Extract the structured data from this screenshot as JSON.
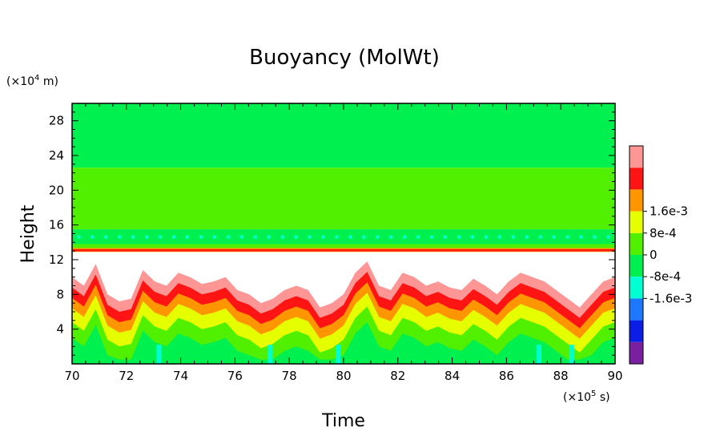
{
  "chart_data": {
    "type": "heatmap",
    "title": "Buoyancy (MolWt)",
    "xlabel": "Time",
    "ylabel": "Height",
    "x_multiplier": {
      "base": "(×10",
      "exp": "5",
      "unit": " s)"
    },
    "y_multiplier": {
      "base": "(×10",
      "exp": "4",
      "unit": " m)"
    },
    "xlim": [
      70,
      90
    ],
    "ylim": [
      0,
      30
    ],
    "x_ticks": [
      "70",
      "72",
      "74",
      "76",
      "78",
      "80",
      "82",
      "84",
      "86",
      "88",
      "90"
    ],
    "x_tick_values": [
      70,
      72,
      74,
      76,
      78,
      80,
      82,
      84,
      86,
      88,
      90
    ],
    "y_ticks": [
      "4",
      "8",
      "12",
      "16",
      "20",
      "24",
      "28"
    ],
    "y_tick_values": [
      4,
      8,
      12,
      16,
      20,
      24,
      28
    ],
    "colorbar": {
      "levels": [
        -0.0024,
        -0.0016,
        -0.0008,
        0,
        0.0008,
        0.0016,
        0.0024
      ],
      "colors": [
        "#7a1fa0",
        "#0a1ee6",
        "#1e78ff",
        "#00ffd2",
        "#00f050",
        "#50f000",
        "#e6ff00",
        "#ff9600",
        "#ff1414",
        "#ff9696"
      ],
      "tick_labels": [
        "1.6e-3",
        "8e-4",
        "0",
        "-8e-4",
        "-1.6e-3"
      ],
      "tick_values": [
        0.0016,
        0.0008,
        0,
        -0.0008,
        -0.0016
      ]
    },
    "bands": [
      {
        "from": 22.6,
        "to": 30,
        "color": "#00f050"
      },
      {
        "from": 15.5,
        "to": 22.6,
        "color": "#50f000"
      },
      {
        "from": 13.8,
        "to": 15.5,
        "color": "#00f050"
      },
      {
        "from": 13.1,
        "to": 13.8,
        "color": "#50f000"
      }
    ],
    "tropopause_line_height": 13.0,
    "mixed_layer_top": [
      10.0,
      9.0,
      11.5,
      8.0,
      7.2,
      7.5,
      10.8,
      9.5,
      9.0,
      10.5,
      10.0,
      9.2,
      9.5,
      10.0,
      8.5,
      8.0,
      7.0,
      7.5,
      8.5,
      9.0,
      8.5,
      6.5,
      7.0,
      8.0,
      10.5,
      11.8,
      9.0,
      8.5,
      10.5,
      10.0,
      9.0,
      9.5,
      8.8,
      8.5,
      9.8,
      9.0,
      8.0,
      9.5,
      10.5,
      10.0,
      9.5,
      8.5,
      7.5,
      6.5,
      8.0,
      9.5,
      10.0
    ]
  }
}
